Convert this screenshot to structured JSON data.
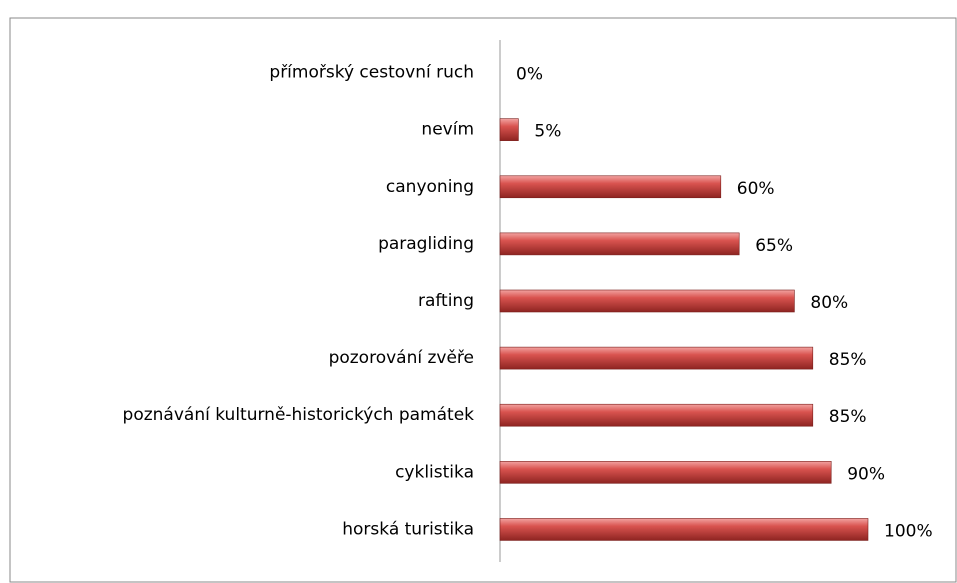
{
  "chart_data": {
    "type": "bar",
    "orientation": "horizontal",
    "categories": [
      "přímořský cestovní ruch",
      "nevím",
      "canyoning",
      "paragliding",
      "rafting",
      "pozorování zvěře",
      "poznávání kulturně-historických památek",
      "cyklistika",
      "horská turistika"
    ],
    "values": [
      0,
      5,
      60,
      65,
      80,
      85,
      85,
      90,
      100
    ],
    "value_labels": [
      "0%",
      "5%",
      "60%",
      "65%",
      "80%",
      "85%",
      "85%",
      "90%",
      "100%"
    ],
    "color": "#c0393b",
    "xlim": [
      0,
      100
    ]
  }
}
